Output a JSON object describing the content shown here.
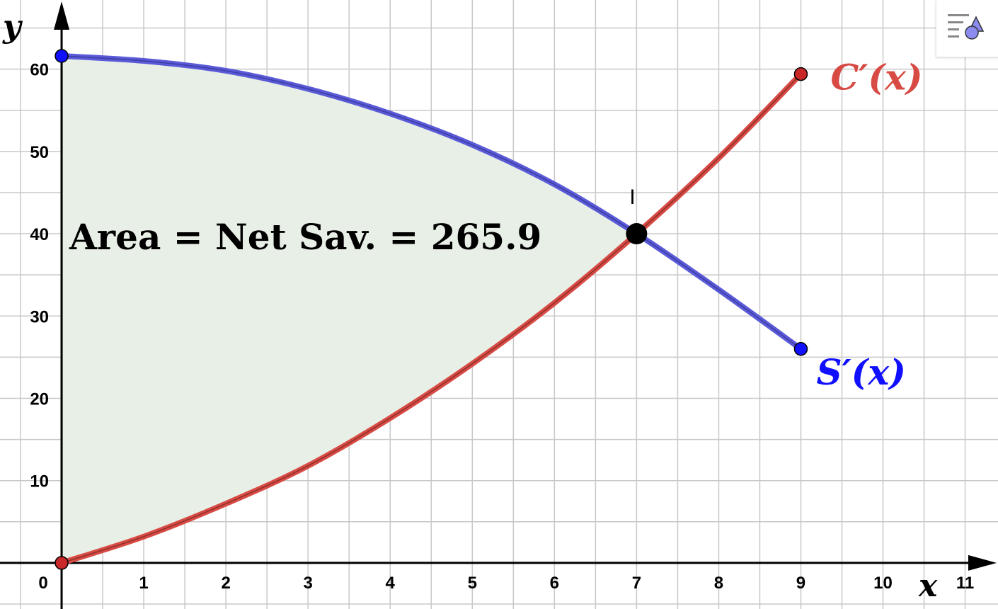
{
  "colors": {
    "grid": "#c8c8c8",
    "axis": "#000000",
    "savings_curve": "#5a5ad8",
    "savings_points": "#1010ff",
    "cost_curve": "#d84a44",
    "cost_points": "#c82828",
    "fill": "#e8efe6",
    "intersection": "#000000",
    "left_edge": "#1e6e1e"
  },
  "chart_data": {
    "type": "line",
    "xlim": [
      -0.75,
      11.4
    ],
    "ylim": [
      -5.6,
      68.4
    ],
    "xlabel": "x",
    "ylabel": "y",
    "grid": true,
    "x_ticks": [
      0,
      1,
      2,
      3,
      4,
      5,
      6,
      7,
      8,
      9,
      10,
      11
    ],
    "y_ticks": [
      10,
      20,
      30,
      40,
      50,
      60
    ],
    "series": [
      {
        "key": "savings",
        "name": "S′(x)",
        "x": [
          0,
          1,
          2,
          3,
          4,
          5,
          6,
          7,
          8,
          9
        ],
        "y": [
          61.6,
          61.0,
          59.8,
          57.6,
          54.6,
          50.8,
          46.0,
          40.0,
          33.2,
          26.0
        ]
      },
      {
        "key": "cost",
        "name": "C′(x)",
        "x": [
          0,
          1,
          2,
          3,
          4,
          5,
          6,
          7,
          8,
          9
        ],
        "y": [
          0.0,
          3.2,
          7.2,
          11.8,
          17.6,
          24.2,
          31.6,
          40.0,
          49.2,
          59.4
        ]
      }
    ],
    "shaded_region": {
      "x_from": 0,
      "x_to": 7
    },
    "endpoints": {
      "savings": [
        [
          0,
          61.6
        ],
        [
          9,
          26.0
        ]
      ],
      "cost": [
        [
          0,
          0
        ],
        [
          9,
          59.4
        ]
      ]
    },
    "intersection": {
      "label": "I",
      "x": 7,
      "y": 40
    },
    "annotation": "Area = Net Sav. = 265.9",
    "curve_labels": {
      "cost": "C′(x)",
      "savings": "S′(x)"
    }
  },
  "toolbar": {
    "style_bar_icon": "graphics-style-icon"
  }
}
